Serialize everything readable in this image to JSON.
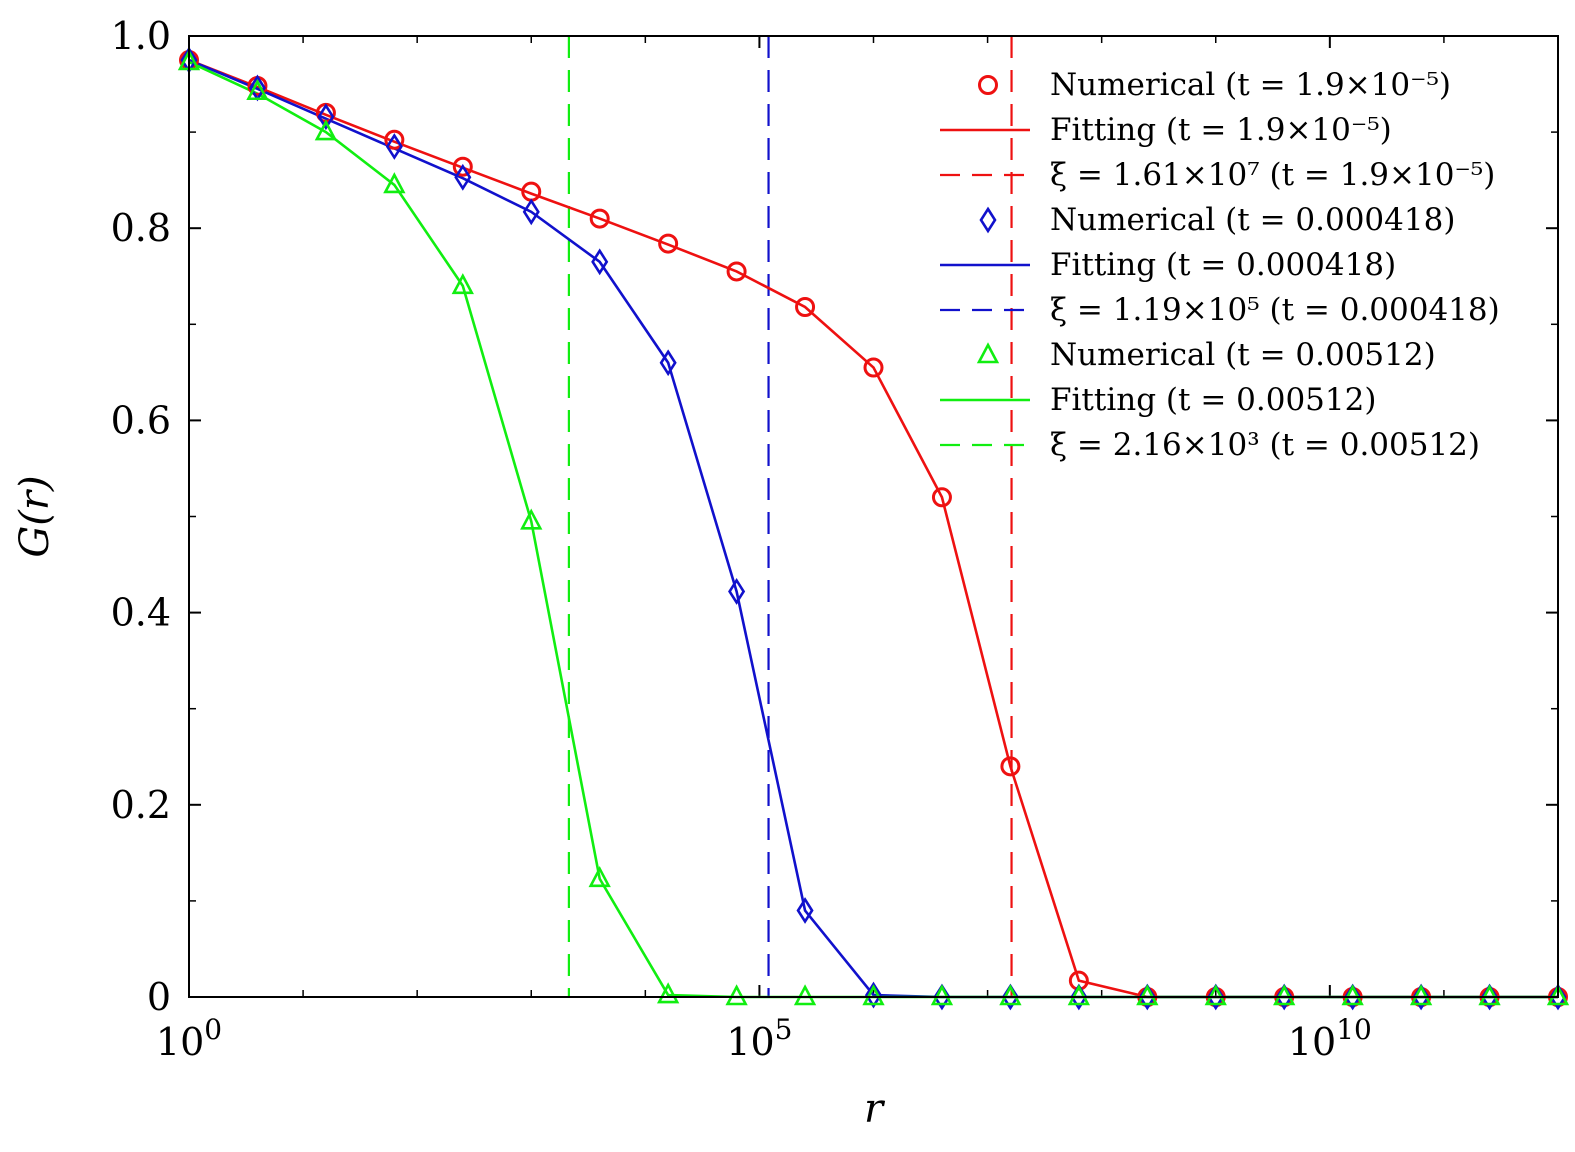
{
  "chart_data": {
    "type": "line",
    "xlabel": "r",
    "ylabel": "G(r)",
    "xscale": "log",
    "xlim_log10": [
      0,
      12
    ],
    "ylim": [
      0,
      1.0
    ],
    "x_ticks": [
      {
        "log10": 0,
        "base": "10",
        "exp": "0"
      },
      {
        "log10": 5,
        "base": "10",
        "exp": "5"
      },
      {
        "log10": 10,
        "base": "10",
        "exp": "10"
      }
    ],
    "y_ticks": [
      "0",
      "0.2",
      "0.4",
      "0.6",
      "0.8",
      "1.0"
    ],
    "y_tick_values": [
      0,
      0.2,
      0.4,
      0.6,
      0.8,
      1.0
    ],
    "legend_position": "top-right",
    "x_log10_points": [
      0,
      0.6,
      1.2,
      1.8,
      2.4,
      3.0,
      3.6,
      4.2,
      4.8,
      5.4,
      6.0,
      6.6,
      7.2,
      7.8,
      8.4,
      9.0,
      9.6,
      10.2,
      10.8,
      11.4,
      12.0
    ],
    "series": [
      {
        "name": "Numerical (t = 1.9×10⁻⁵)",
        "color": "#ee1111",
        "marker": "circle",
        "values": [
          0.975,
          0.948,
          0.92,
          0.892,
          0.864,
          0.838,
          0.81,
          0.784,
          0.755,
          0.718,
          0.655,
          0.52,
          0.24,
          0.017,
          0,
          0,
          0,
          0,
          0,
          0,
          0
        ],
        "fit_values": [
          0.975,
          0.947,
          0.918,
          0.89,
          0.863,
          0.836,
          0.81,
          0.783,
          0.755,
          0.718,
          0.655,
          0.52,
          0.24,
          0.017,
          0,
          0,
          0,
          0,
          0,
          0,
          0
        ],
        "xi_log10": 7.21
      },
      {
        "name": "Numerical (t = 0.000418)",
        "color": "#1111cc",
        "marker": "diamond",
        "values": [
          0.975,
          0.946,
          0.916,
          0.885,
          0.853,
          0.817,
          0.765,
          0.66,
          0.422,
          0.09,
          0.002,
          0,
          0,
          0,
          0,
          0,
          0,
          0,
          0,
          0,
          0
        ],
        "fit_values": [
          0.975,
          0.945,
          0.914,
          0.883,
          0.852,
          0.817,
          0.765,
          0.66,
          0.422,
          0.09,
          0.002,
          0,
          0,
          0,
          0,
          0,
          0,
          0,
          0,
          0,
          0
        ],
        "xi_log10": 5.08
      },
      {
        "name": "Numerical (t = 0.00512)",
        "color": "#11ee11",
        "marker": "triangle",
        "values": [
          0.973,
          0.942,
          0.9,
          0.845,
          0.74,
          0.495,
          0.123,
          0.002,
          0,
          0,
          0,
          0,
          0,
          0,
          0,
          0,
          0,
          0,
          0,
          0,
          0
        ],
        "fit_values": [
          0.973,
          0.94,
          0.9,
          0.845,
          0.74,
          0.495,
          0.123,
          0.002,
          0,
          0,
          0,
          0,
          0,
          0,
          0,
          0,
          0,
          0,
          0,
          0,
          0
        ],
        "xi_log10": 3.33
      }
    ],
    "legend_entries": [
      {
        "label": "Numerical (t = 1.9×10⁻⁵)",
        "color": "#ee1111",
        "style": "circle"
      },
      {
        "label": "Fitting (t = 1.9×10⁻⁵)",
        "color": "#ee1111",
        "style": "solid"
      },
      {
        "label": "ξ = 1.61×10⁷ (t = 1.9×10⁻⁵)",
        "color": "#ee1111",
        "style": "dashed"
      },
      {
        "label": "Numerical (t = 0.000418)",
        "color": "#1111cc",
        "style": "diamond"
      },
      {
        "label": "Fitting (t = 0.000418)",
        "color": "#1111cc",
        "style": "solid"
      },
      {
        "label": "ξ = 1.19×10⁵ (t = 0.000418)",
        "color": "#1111cc",
        "style": "dashed"
      },
      {
        "label": "Numerical (t = 0.00512)",
        "color": "#11ee11",
        "style": "triangle"
      },
      {
        "label": "Fitting (t = 0.00512)",
        "color": "#11ee11",
        "style": "solid"
      },
      {
        "label": "ξ = 2.16×10³ (t = 0.00512)",
        "color": "#11ee11",
        "style": "dashed"
      }
    ]
  }
}
